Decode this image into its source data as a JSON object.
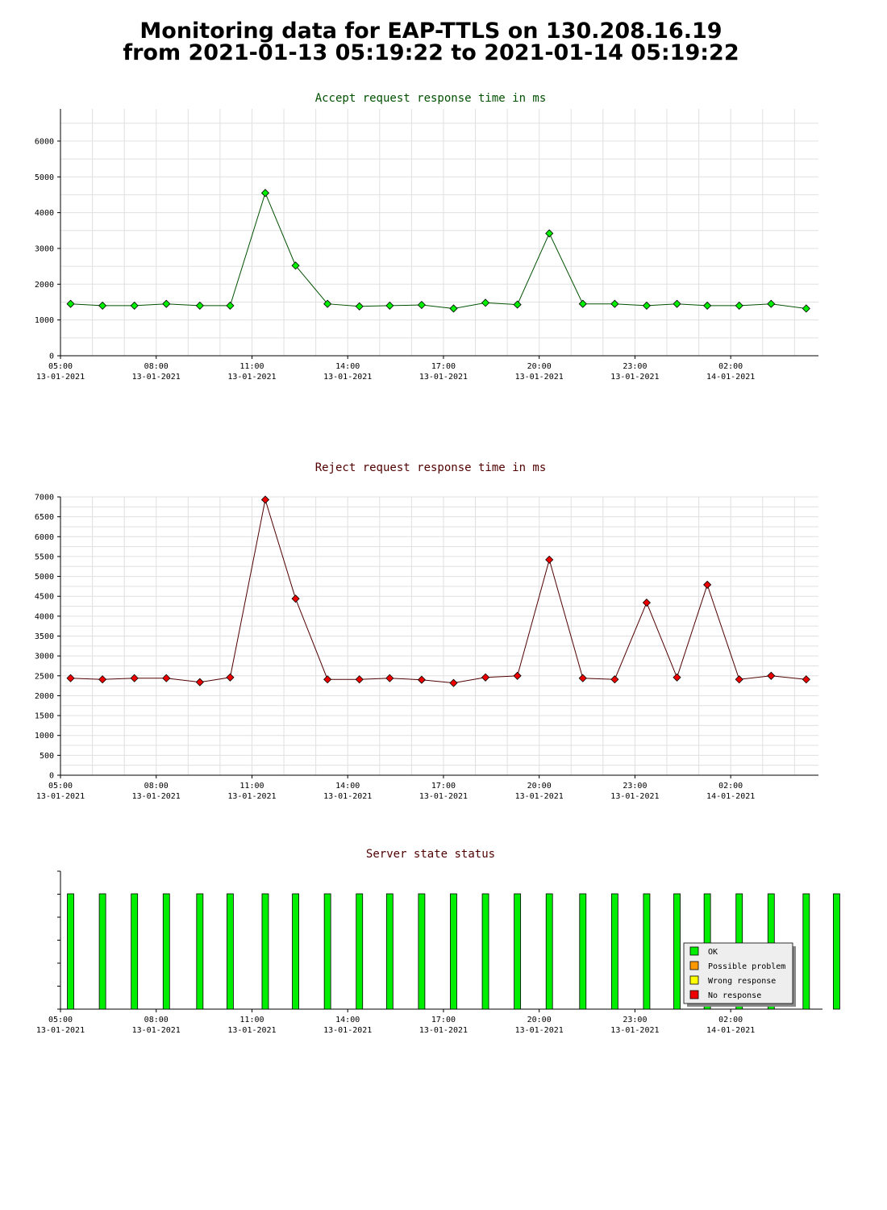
{
  "page": {
    "title_line1": "Monitoring data for EAP-TTLS on 130.208.16.19",
    "title_line2": "from 2021-01-13 05:19:22 to 2021-01-14 05:19:22"
  },
  "colors": {
    "grid": "#e0e0e0",
    "accept_title": "#005000",
    "reject_title": "#500000",
    "accept_marker": "#00ee00",
    "reject_marker": "#ee0000",
    "ok": "#00ee00",
    "possible_problem": "#ff9900",
    "wrong_response": "#ffff00",
    "no_response": "#ee0000"
  },
  "chart_data": [
    {
      "type": "line",
      "title": "Accept request response time in ms",
      "xlabel": "",
      "ylabel": "",
      "xlim": [
        "2021-01-13 05:00",
        "2021-01-14 04:45"
      ],
      "ylim": [
        0,
        6900
      ],
      "yticks": [
        0,
        1000,
        2000,
        3000,
        4000,
        5000,
        6000
      ],
      "xticks": [
        {
          "time": "05:00",
          "date": "13-01-2021"
        },
        {
          "time": "08:00",
          "date": "13-01-2021"
        },
        {
          "time": "11:00",
          "date": "13-01-2021"
        },
        {
          "time": "14:00",
          "date": "13-01-2021"
        },
        {
          "time": "17:00",
          "date": "13-01-2021"
        },
        {
          "time": "20:00",
          "date": "13-01-2021"
        },
        {
          "time": "23:00",
          "date": "13-01-2021"
        },
        {
          "time": "02:00",
          "date": "14-01-2021"
        }
      ],
      "grid": true,
      "series": [
        {
          "x": [
            "2021-01-13 05:19",
            "2021-01-13 06:19",
            "2021-01-13 07:19",
            "2021-01-13 08:19",
            "2021-01-13 09:22",
            "2021-01-13 10:19",
            "2021-01-13 11:25",
            "2021-01-13 12:22",
            "2021-01-13 13:22",
            "2021-01-13 14:22",
            "2021-01-13 15:19",
            "2021-01-13 16:19",
            "2021-01-13 17:19",
            "2021-01-13 18:19",
            "2021-01-13 19:19",
            "2021-01-13 20:19",
            "2021-01-13 21:22",
            "2021-01-13 22:22",
            "2021-01-13 23:22",
            "2021-01-14 00:19",
            "2021-01-14 01:16",
            "2021-01-14 02:16",
            "2021-01-14 03:16",
            "2021-01-14 04:22"
          ],
          "values": [
            1450,
            1400,
            1400,
            1450,
            1400,
            1400,
            4550,
            2520,
            1450,
            1380,
            1400,
            1420,
            1320,
            1480,
            1430,
            3420,
            1450,
            1450,
            1400,
            1450,
            1400,
            1400,
            1450,
            1320
          ]
        }
      ]
    },
    {
      "type": "line",
      "title": "Reject request response time in ms",
      "xlabel": "",
      "ylabel": "",
      "xlim": [
        "2021-01-13 05:00",
        "2021-01-14 04:45"
      ],
      "ylim": [
        0,
        7000
      ],
      "yticks": [
        0,
        500,
        1000,
        1500,
        2000,
        2500,
        3000,
        3500,
        4000,
        4500,
        5000,
        5500,
        6000,
        6500,
        7000
      ],
      "xticks": [
        {
          "time": "05:00",
          "date": "13-01-2021"
        },
        {
          "time": "08:00",
          "date": "13-01-2021"
        },
        {
          "time": "11:00",
          "date": "13-01-2021"
        },
        {
          "time": "14:00",
          "date": "13-01-2021"
        },
        {
          "time": "17:00",
          "date": "13-01-2021"
        },
        {
          "time": "20:00",
          "date": "13-01-2021"
        },
        {
          "time": "23:00",
          "date": "13-01-2021"
        },
        {
          "time": "02:00",
          "date": "14-01-2021"
        }
      ],
      "grid": true,
      "series": [
        {
          "x": [
            "2021-01-13 05:19",
            "2021-01-13 06:19",
            "2021-01-13 07:19",
            "2021-01-13 08:19",
            "2021-01-13 09:22",
            "2021-01-13 10:19",
            "2021-01-13 11:25",
            "2021-01-13 12:22",
            "2021-01-13 13:22",
            "2021-01-13 14:22",
            "2021-01-13 15:19",
            "2021-01-13 16:19",
            "2021-01-13 17:19",
            "2021-01-13 18:19",
            "2021-01-13 19:19",
            "2021-01-13 20:19",
            "2021-01-13 21:22",
            "2021-01-13 22:22",
            "2021-01-13 23:22",
            "2021-01-14 00:19",
            "2021-01-14 01:16",
            "2021-01-14 02:16",
            "2021-01-14 03:16",
            "2021-01-14 04:22"
          ],
          "values": [
            2440,
            2410,
            2440,
            2440,
            2340,
            2460,
            6930,
            4440,
            2410,
            2410,
            2440,
            2400,
            2320,
            2460,
            2500,
            5420,
            2440,
            2410,
            4340,
            2460,
            4790,
            2410,
            2500,
            2410
          ]
        }
      ]
    },
    {
      "type": "bar",
      "title": "Server state status",
      "xlabel": "",
      "ylabel": "",
      "xlim": [
        "2021-01-13 05:00",
        "2021-01-14 04:45"
      ],
      "xticks": [
        {
          "time": "05:00",
          "date": "13-01-2021"
        },
        {
          "time": "08:00",
          "date": "13-01-2021"
        },
        {
          "time": "11:00",
          "date": "13-01-2021"
        },
        {
          "time": "14:00",
          "date": "13-01-2021"
        },
        {
          "time": "17:00",
          "date": "13-01-2021"
        },
        {
          "time": "20:00",
          "date": "13-01-2021"
        },
        {
          "time": "23:00",
          "date": "13-01-2021"
        },
        {
          "time": "02:00",
          "date": "14-01-2021"
        }
      ],
      "grid": false,
      "legend_position": "bottom-right",
      "legend": [
        "OK",
        "Possible problem",
        "Wrong response",
        "No response"
      ],
      "x": [
        "2021-01-13 05:19",
        "2021-01-13 06:19",
        "2021-01-13 07:19",
        "2021-01-13 08:19",
        "2021-01-13 09:22",
        "2021-01-13 10:19",
        "2021-01-13 11:25",
        "2021-01-13 12:22",
        "2021-01-13 13:22",
        "2021-01-13 14:22",
        "2021-01-13 15:19",
        "2021-01-13 16:19",
        "2021-01-13 17:19",
        "2021-01-13 18:19",
        "2021-01-13 19:19",
        "2021-01-13 20:19",
        "2021-01-13 21:22",
        "2021-01-13 22:22",
        "2021-01-13 23:22",
        "2021-01-14 00:19",
        "2021-01-14 01:16",
        "2021-01-14 02:16",
        "2021-01-14 03:16",
        "2021-01-14 04:22",
        "2021-01-14 05:19"
      ],
      "states": [
        "OK",
        "OK",
        "OK",
        "OK",
        "OK",
        "OK",
        "OK",
        "OK",
        "OK",
        "OK",
        "OK",
        "OK",
        "OK",
        "OK",
        "OK",
        "OK",
        "OK",
        "OK",
        "OK",
        "OK",
        "OK",
        "OK",
        "OK",
        "OK",
        "OK"
      ]
    }
  ]
}
